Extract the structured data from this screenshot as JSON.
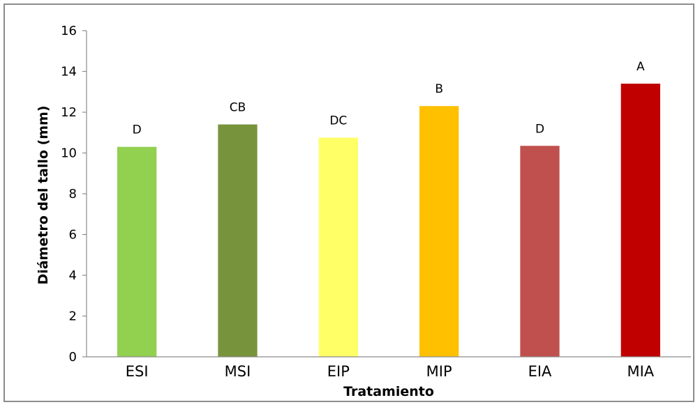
{
  "chart_data": {
    "type": "bar",
    "xlabel": "Tratamiento",
    "ylabel": "Diámetro del tallo (mm)",
    "ylim": [
      0,
      16
    ],
    "yticks": [
      0,
      2,
      4,
      6,
      8,
      10,
      12,
      14,
      16
    ],
    "grid": false,
    "legend": "none",
    "categories": [
      "ESI",
      "MSI",
      "EIP",
      "MIP",
      "EIA",
      "MIA"
    ],
    "values": [
      10.3,
      11.4,
      10.75,
      12.3,
      10.35,
      13.4
    ],
    "data_labels": [
      "D",
      "CB",
      "DC",
      "B",
      "D",
      "A"
    ],
    "colors": [
      "#92d050",
      "#77933c",
      "#ffff66",
      "#ffc000",
      "#c0504d",
      "#c00000"
    ]
  }
}
